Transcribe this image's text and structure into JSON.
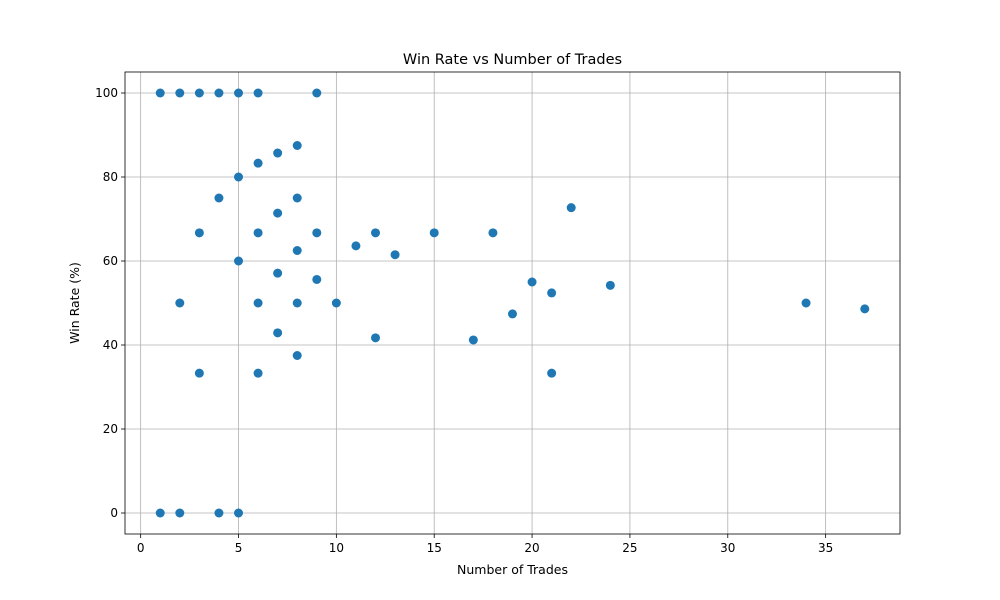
{
  "chart_data": {
    "type": "scatter",
    "title": "Win Rate vs Number of Trades",
    "xlabel": "Number of Trades",
    "ylabel": "Win Rate (%)",
    "xlim": [
      -0.8,
      38.8
    ],
    "ylim": [
      -5,
      105
    ],
    "xticks": [
      0,
      5,
      10,
      15,
      20,
      25,
      30,
      35
    ],
    "yticks": [
      0,
      20,
      40,
      60,
      80,
      100
    ],
    "grid": true,
    "marker_color": "#1f77b4",
    "points": [
      {
        "x": 1,
        "y": 100
      },
      {
        "x": 2,
        "y": 100
      },
      {
        "x": 3,
        "y": 100
      },
      {
        "x": 4,
        "y": 100
      },
      {
        "x": 5,
        "y": 100
      },
      {
        "x": 6,
        "y": 100
      },
      {
        "x": 9,
        "y": 100
      },
      {
        "x": 8,
        "y": 87.5
      },
      {
        "x": 7,
        "y": 85.7
      },
      {
        "x": 6,
        "y": 83.3
      },
      {
        "x": 5,
        "y": 80
      },
      {
        "x": 4,
        "y": 75
      },
      {
        "x": 8,
        "y": 75
      },
      {
        "x": 22,
        "y": 72.7
      },
      {
        "x": 7,
        "y": 71.4
      },
      {
        "x": 3,
        "y": 66.7
      },
      {
        "x": 6,
        "y": 66.7
      },
      {
        "x": 9,
        "y": 66.7
      },
      {
        "x": 12,
        "y": 66.7
      },
      {
        "x": 15,
        "y": 66.7
      },
      {
        "x": 18,
        "y": 66.7
      },
      {
        "x": 11,
        "y": 63.6
      },
      {
        "x": 8,
        "y": 62.5
      },
      {
        "x": 13,
        "y": 61.5
      },
      {
        "x": 5,
        "y": 60
      },
      {
        "x": 7,
        "y": 57.1
      },
      {
        "x": 9,
        "y": 55.6
      },
      {
        "x": 20,
        "y": 55
      },
      {
        "x": 24,
        "y": 54.2
      },
      {
        "x": 21,
        "y": 52.4
      },
      {
        "x": 2,
        "y": 50
      },
      {
        "x": 6,
        "y": 50
      },
      {
        "x": 8,
        "y": 50
      },
      {
        "x": 10,
        "y": 50
      },
      {
        "x": 34,
        "y": 50
      },
      {
        "x": 37,
        "y": 48.6
      },
      {
        "x": 19,
        "y": 47.4
      },
      {
        "x": 7,
        "y": 42.9
      },
      {
        "x": 12,
        "y": 41.7
      },
      {
        "x": 17,
        "y": 41.2
      },
      {
        "x": 8,
        "y": 37.5
      },
      {
        "x": 3,
        "y": 33.3
      },
      {
        "x": 6,
        "y": 33.3
      },
      {
        "x": 21,
        "y": 33.3
      },
      {
        "x": 1,
        "y": 0
      },
      {
        "x": 2,
        "y": 0
      },
      {
        "x": 4,
        "y": 0
      },
      {
        "x": 5,
        "y": 0
      }
    ]
  }
}
